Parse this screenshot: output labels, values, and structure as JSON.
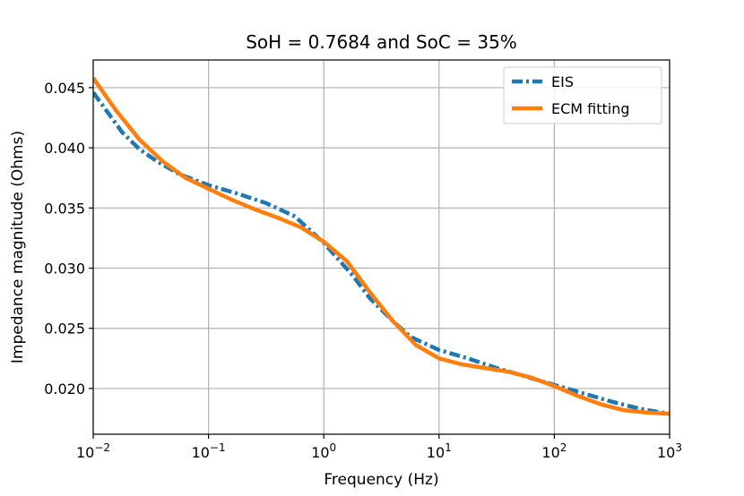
{
  "chart_data": {
    "type": "line",
    "title": "SoH = 0.7684 and SoC = 35%",
    "xlabel": "Frequency (Hz)",
    "ylabel": "Impedance magnitude (Ohms)",
    "xscale": "log",
    "xlim": [
      0.01,
      1000
    ],
    "ylim": [
      0.0162,
      0.0473
    ],
    "grid": true,
    "legend_position": "top-right",
    "x_ticks": [
      {
        "base": "10",
        "exp": "−2",
        "value": 0.01
      },
      {
        "base": "10",
        "exp": "−1",
        "value": 0.1
      },
      {
        "base": "10",
        "exp": "0",
        "value": 1
      },
      {
        "base": "10",
        "exp": "1",
        "value": 10
      },
      {
        "base": "10",
        "exp": "2",
        "value": 100
      },
      {
        "base": "10",
        "exp": "3",
        "value": 1000
      }
    ],
    "y_ticks": [
      {
        "label": "0.020",
        "value": 0.02
      },
      {
        "label": "0.025",
        "value": 0.025
      },
      {
        "label": "0.030",
        "value": 0.03
      },
      {
        "label": "0.035",
        "value": 0.035
      },
      {
        "label": "0.040",
        "value": 0.04
      },
      {
        "label": "0.045",
        "value": 0.045
      }
    ],
    "series": [
      {
        "name": "EIS",
        "color": "#1f77b4",
        "style": "dashdot",
        "x": [
          0.01,
          0.0178,
          0.0251,
          0.0355,
          0.0562,
          0.1,
          0.178,
          0.316,
          0.562,
          1,
          1.78,
          2.51,
          3.98,
          5.62,
          10,
          17.8,
          31.6,
          56.2,
          100,
          178,
          316,
          562,
          1000
        ],
        "y": [
          0.0446,
          0.0413,
          0.0399,
          0.0389,
          0.0378,
          0.0369,
          0.0362,
          0.0354,
          0.0343,
          0.0321,
          0.0294,
          0.0275,
          0.0256,
          0.0243,
          0.0232,
          0.0225,
          0.0217,
          0.021,
          0.0203,
          0.0196,
          0.0189,
          0.0183,
          0.0179
        ]
      },
      {
        "name": "ECM fitting",
        "color": "#ff7f0e",
        "style": "solid",
        "x": [
          0.01,
          0.0158,
          0.0251,
          0.0398,
          0.0631,
          0.1,
          0.158,
          0.251,
          0.398,
          0.631,
          1,
          1.58,
          2.51,
          3.98,
          6.31,
          10,
          15.8,
          25.1,
          39.8,
          63.1,
          100,
          158,
          251,
          398,
          631,
          1000
        ],
        "y": [
          0.0458,
          0.0431,
          0.0407,
          0.0389,
          0.0375,
          0.0366,
          0.0357,
          0.0349,
          0.0342,
          0.0334,
          0.0322,
          0.0306,
          0.028,
          0.0256,
          0.0236,
          0.0225,
          0.022,
          0.0217,
          0.0214,
          0.0209,
          0.0202,
          0.0194,
          0.0187,
          0.0182,
          0.018,
          0.0179
        ]
      }
    ]
  }
}
